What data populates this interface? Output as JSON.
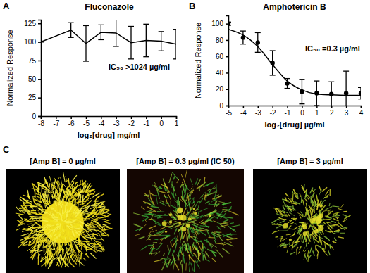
{
  "panel_labels": [
    "A",
    "B",
    "C"
  ],
  "chart_data": [
    {
      "type": "line",
      "title": "Fluconazole",
      "x_label": "log₂[drug] mg/ml",
      "y_label": "Normalized Response",
      "annotations": [
        "IC₅₀ >1024 µg/ml"
      ],
      "x": [
        -8,
        -6,
        -5,
        -4,
        -3,
        -2,
        -1,
        0,
        1
      ],
      "series": [
        {
          "type": "line",
          "color": "#000000",
          "marker": "none",
          "line_style": "solid",
          "values": [
            100,
            116,
            98,
            113,
            112,
            99,
            102,
            101,
            97
          ],
          "errors": [
            0,
            10,
            24,
            10,
            18,
            22,
            22,
            13,
            20
          ]
        }
      ],
      "xlim": [
        -8,
        1
      ],
      "xticks": [
        -8,
        -7,
        -6,
        -5,
        -4,
        -3,
        -2,
        -1,
        0,
        1
      ],
      "ylim": [
        0,
        130
      ],
      "yticks": [
        0,
        25,
        50,
        75,
        100,
        125
      ],
      "grid": false
    },
    {
      "type": "scatter",
      "title": "Amphotericin B",
      "x_label": "log₂[drug] µg/ml",
      "y_label": "Normalized Response",
      "annotations": [
        "IC₅₀ =0.3 µg/ml"
      ],
      "x": [
        -5,
        -4,
        -3,
        -2,
        -1,
        0,
        1,
        2,
        3,
        4
      ],
      "series": [
        {
          "type": "scatter",
          "color": "#000000",
          "marker": "circle",
          "values": [
            100,
            83,
            77,
            52,
            27,
            17,
            15,
            14,
            15,
            15
          ],
          "errors": [
            2,
            8,
            12,
            15,
            6,
            15,
            15,
            15,
            27,
            7
          ]
        },
        {
          "type": "line",
          "color": "#000000",
          "marker": "none",
          "line_style": "solid",
          "values": [
            93,
            86,
            72,
            50,
            30,
            19,
            14,
            13,
            12.5,
            12.5
          ]
        }
      ],
      "xlim": [
        -5,
        4
      ],
      "xticks": [
        -5,
        -4,
        -3,
        -2,
        -1,
        0,
        1,
        2,
        3,
        4
      ],
      "ylim": [
        0,
        110
      ],
      "yticks": [
        0,
        20,
        40,
        60,
        80,
        100
      ],
      "grid": false
    }
  ],
  "images": [
    {
      "caption": "[Amp B] = 0 µg/ml"
    },
    {
      "caption": "[Amp B] = 0.3 µg/ml (IC 50)"
    },
    {
      "caption": "[Amp B] = 3 µg/ml"
    }
  ]
}
